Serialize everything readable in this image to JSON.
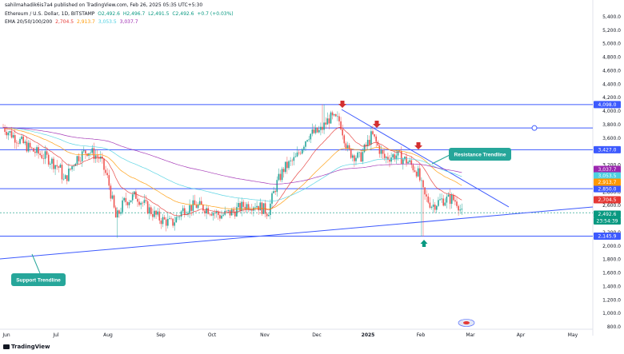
{
  "header": {
    "publisher": "sahilmahadik6is7a4 published on TradingView.com, Feb 26, 2025 05:35 UTC+5:30",
    "symbol": "Ethereum / U.S. Dollar, 1D, BITSTAMP",
    "ohlc": {
      "o": "O2,492.6",
      "h": "H2,496.7",
      "l": "L2,491.5",
      "c": "C2,492.6",
      "chg": "+0.7 (+0.03%)"
    },
    "ema_label": "EMA 20/50/100/200",
    "ema_values": [
      "2,704.5",
      "2,913.7",
      "3,053.5",
      "3,037.7"
    ],
    "ema_colors": [
      "#e53935",
      "#ff9800",
      "#4dd0e1",
      "#9c27b0"
    ]
  },
  "footer": {
    "brand": "TradingView"
  },
  "chart_data": {
    "type": "candlestick",
    "y_axis": {
      "min": 800,
      "max": 5500,
      "ticks": [
        "5,400.0",
        "5,200.0",
        "5,000.0",
        "4,800.0",
        "4,600.0",
        "4,400.0",
        "4,200.0",
        "4,000.0",
        "3,800.0",
        "3,600.0",
        "3,400.0",
        "3,200.0",
        "2,800.0",
        "2,600.0",
        "2,200.0",
        "2,000.0",
        "1,800.0",
        "1,600.0",
        "1,400.0",
        "1,200.0",
        "1,000.0",
        "800.0"
      ]
    },
    "x_axis": {
      "ticks": [
        "Jun",
        "Jul",
        "Aug",
        "Sep",
        "Oct",
        "Nov",
        "Dec",
        "2025",
        "Feb",
        "Mar",
        "Apr",
        "May"
      ]
    },
    "horizontal_levels": [
      {
        "value": 4098.0,
        "label": "4,098.0",
        "color": "#3d5afe"
      },
      {
        "value": 3750.0,
        "label": "",
        "color": "#3d5afe"
      },
      {
        "value": 3427.0,
        "label": "3,427.0",
        "color": "#3d5afe"
      },
      {
        "value": 2850.0,
        "label": "2,850.0",
        "color": "#3d5afe"
      },
      {
        "value": 2145.9,
        "label": "2,145.9",
        "color": "#3d5afe"
      }
    ],
    "price_labels": [
      {
        "value": 3037.7,
        "label": "3,037.7",
        "color": "#9c27b0"
      },
      {
        "value": 3053.5,
        "label": "3,053.5",
        "color": "#4dd0e1"
      },
      {
        "value": 2913.7,
        "label": "2,913.7",
        "color": "#ff9800"
      },
      {
        "value": 2704.5,
        "label": "2,704.5",
        "color": "#e53935"
      },
      {
        "value": 2492.6,
        "label": "2,492.6",
        "color": "#089981"
      }
    ],
    "countdown": "23:54:39",
    "annotations": [
      {
        "text": "Resistance Trendline",
        "color": "#26a69a"
      },
      {
        "text": "Support Trendline",
        "color": "#26a69a"
      }
    ],
    "up_color": "#26a69a",
    "down_color": "#ef5350"
  }
}
